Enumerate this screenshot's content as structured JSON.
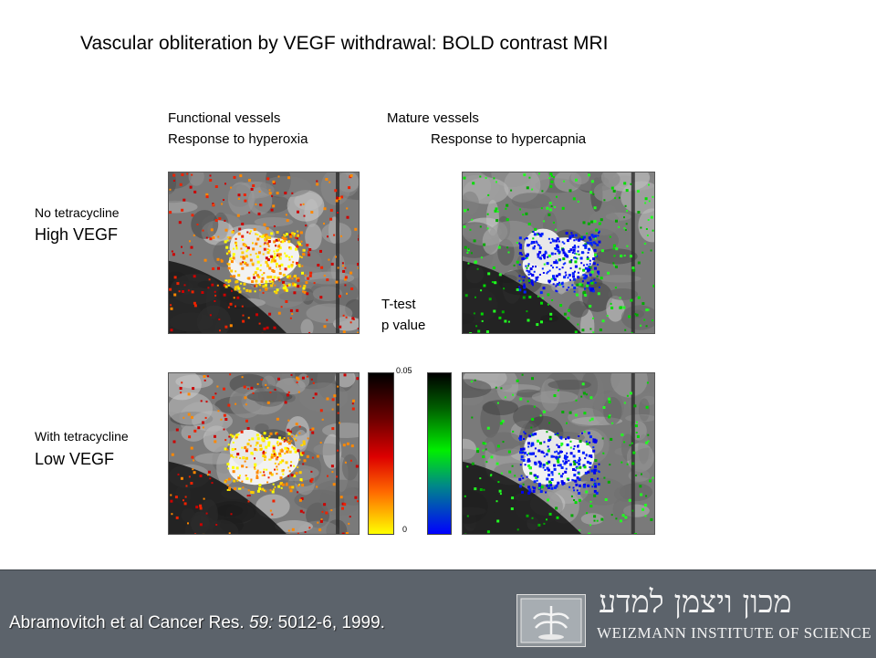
{
  "slide": {
    "title": "Vascular obliteration by VEGF withdrawal: BOLD contrast MRI",
    "col_left_line1": "Functional vessels",
    "col_left_line2": "Response to hyperoxia",
    "col_right_line1": "Mature vessels",
    "col_right_line2": "Response to hypercapnia",
    "row1_small": "No tetracycline",
    "row1_big": "High VEGF",
    "row2_small": "With tetracycline",
    "row2_big": "Low VEGF",
    "ttest_line1": "T-test",
    "ttest_line2": "p value",
    "scale_top": "0.05",
    "scale_bottom": "0"
  },
  "footer": {
    "citation_plain": "Abramovitch et al Cancer Res. ",
    "citation_italic": "59:",
    "citation_rest": " 5012-6, 1999.",
    "logo_hebrew": "מכון ויצמן למדע",
    "logo_english": "WEIZMANN INSTITUTE OF SCIENCE"
  },
  "colors": {
    "footer_bg": "#5c636b",
    "hot_scale": [
      "#000000",
      "#cc0000",
      "#ff6600",
      "#ffff00"
    ],
    "cool_scale": [
      "#000000",
      "#00ee00",
      "#0000ff"
    ]
  }
}
